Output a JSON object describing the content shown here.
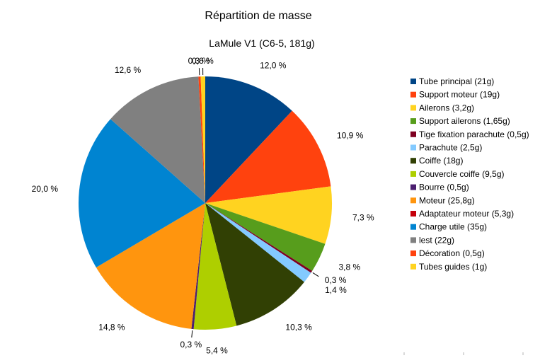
{
  "chart_data": {
    "type": "pie",
    "title": "Répartition de masse",
    "subtitle": "LaMule V1 (C6-5, 181g)",
    "legend_position": "right",
    "slices": [
      {
        "name": "Tube principal (21g)",
        "value": 21,
        "label": "12,0 %",
        "color": "#004586"
      },
      {
        "name": "Support moteur (19g)",
        "value": 19,
        "label": "10,9 %",
        "color": "#ff420e"
      },
      {
        "name": "Ailerons (3,2g)",
        "value": 12.8,
        "label": "7,3 %",
        "color": "#ffd320"
      },
      {
        "name": "Support ailerons (1,65g)",
        "value": 6.6,
        "label": "3,8 %",
        "color": "#579d1c"
      },
      {
        "name": "Tige fixation parachute (0,5g)",
        "value": 0.5,
        "label": "0,3 %",
        "color": "#7e0021"
      },
      {
        "name": "Parachute (2,5g)",
        "value": 2.5,
        "label": "1,4 %",
        "color": "#83caff"
      },
      {
        "name": "Coiffe (18g)",
        "value": 18,
        "label": "10,3 %",
        "color": "#314004"
      },
      {
        "name": "Couvercle coiffe (9,5g)",
        "value": 9.5,
        "label": "5,4 %",
        "color": "#aecf00"
      },
      {
        "name": "Bourre (0,5g)",
        "value": 0.5,
        "label": "0,3 %",
        "color": "#4b1f6f"
      },
      {
        "name": "Moteur (25,8g)",
        "value": 25.8,
        "label": "14,8 %",
        "color": "#ff950e"
      },
      {
        "name": "Adaptateur moteur (5,3g)",
        "value": 0.0,
        "label": "",
        "color": "#c5000b"
      },
      {
        "name": "Charge utile (35g)",
        "value": 35,
        "label": "20,0 %",
        "color": "#0084d1"
      },
      {
        "name": "lest (22g)",
        "value": 22,
        "label": "12,6 %",
        "color": "#808080"
      },
      {
        "name": "Décoration (0,5g)",
        "value": 0.5,
        "label": "0,3 %",
        "color": "#ff420e"
      },
      {
        "name": "Tubes guides (1g)",
        "value": 1,
        "label": "0,6 %",
        "color": "#ffd320"
      }
    ]
  }
}
